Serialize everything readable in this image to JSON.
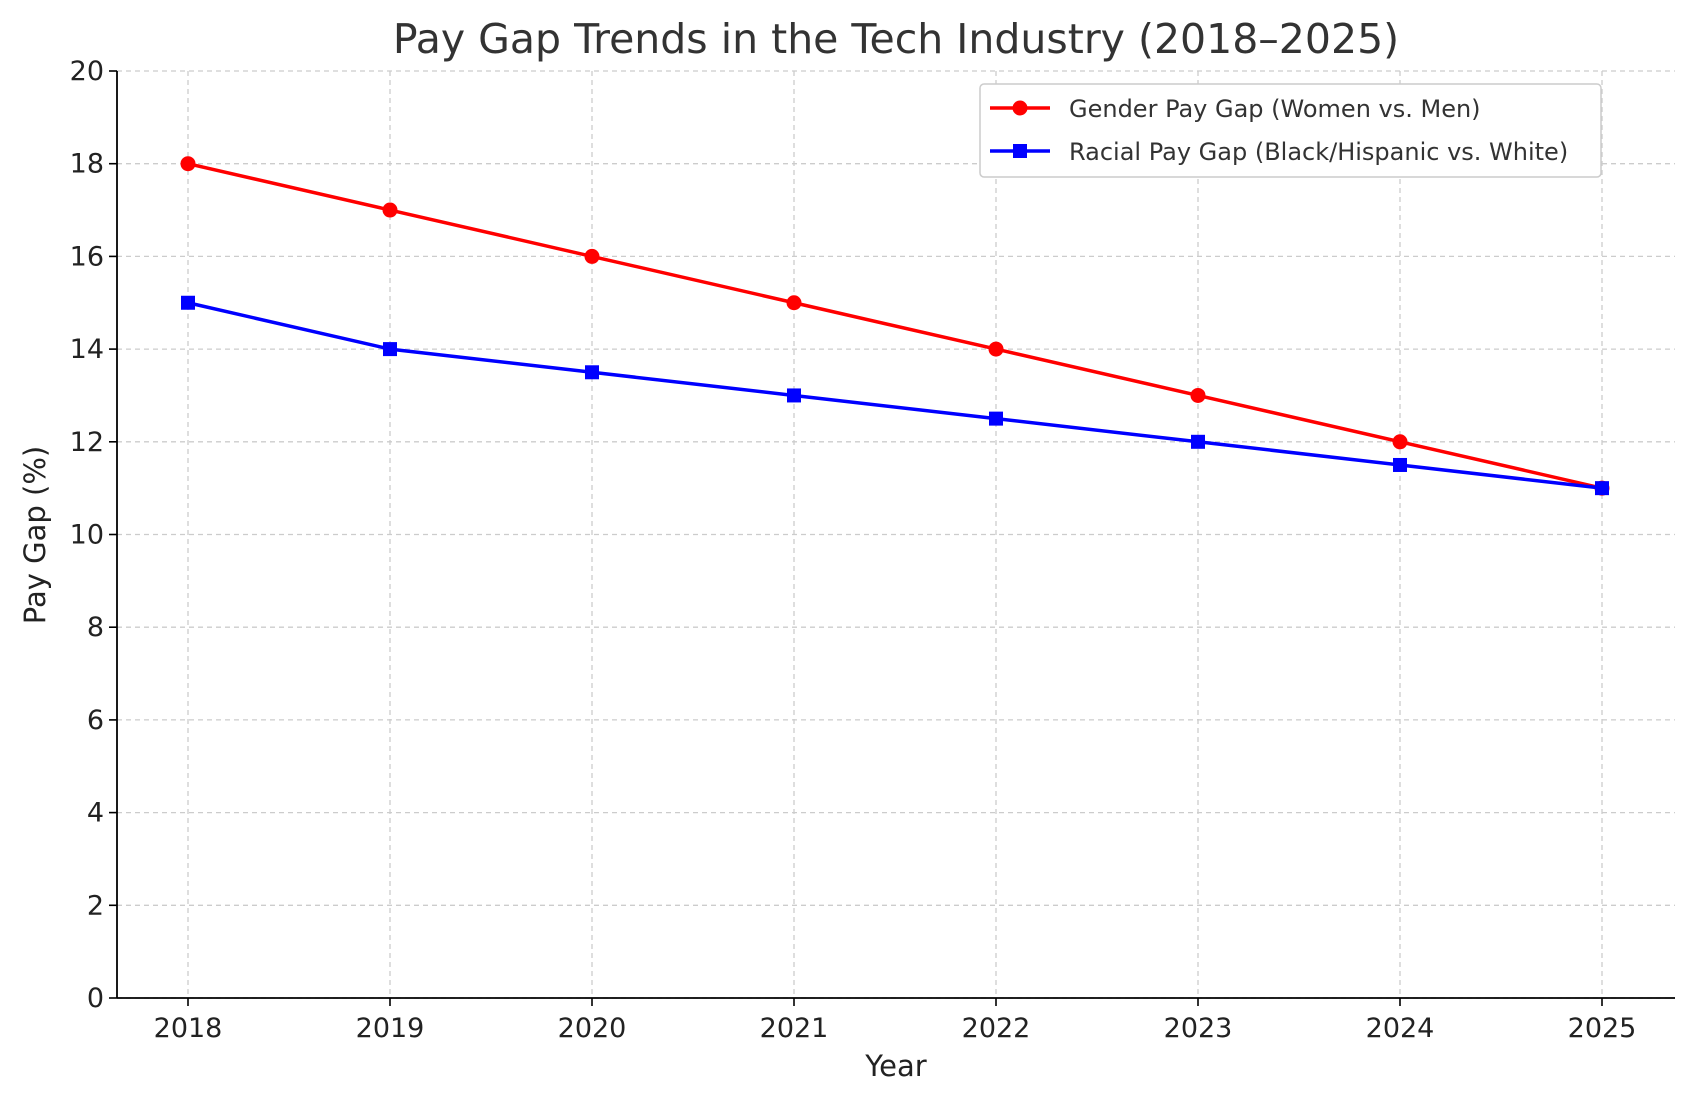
{
  "chart_data": {
    "type": "line",
    "title": "Pay Gap Trends in the Tech Industry (2018–2025)",
    "xlabel": "Year",
    "ylabel": "Pay Gap (%)",
    "categories": [
      "2018",
      "2019",
      "2020",
      "2021",
      "2022",
      "2023",
      "2024",
      "2025"
    ],
    "ylim": [
      0,
      20
    ],
    "yticks": [
      0,
      2,
      4,
      6,
      8,
      10,
      12,
      14,
      16,
      18,
      20
    ],
    "grid": true,
    "grid_style": "dashed",
    "legend_position": "top-right",
    "series": [
      {
        "name": "Gender Pay Gap (Women vs. Men)",
        "values": [
          18,
          17,
          16,
          15,
          14,
          13,
          12,
          11
        ],
        "color": "#ff0000",
        "marker": "circle"
      },
      {
        "name": "Racial Pay Gap (Black/Hispanic vs. White)",
        "values": [
          15,
          14,
          13.5,
          13,
          12.5,
          12,
          11.5,
          11
        ],
        "color": "#0000ff",
        "marker": "square"
      }
    ]
  }
}
